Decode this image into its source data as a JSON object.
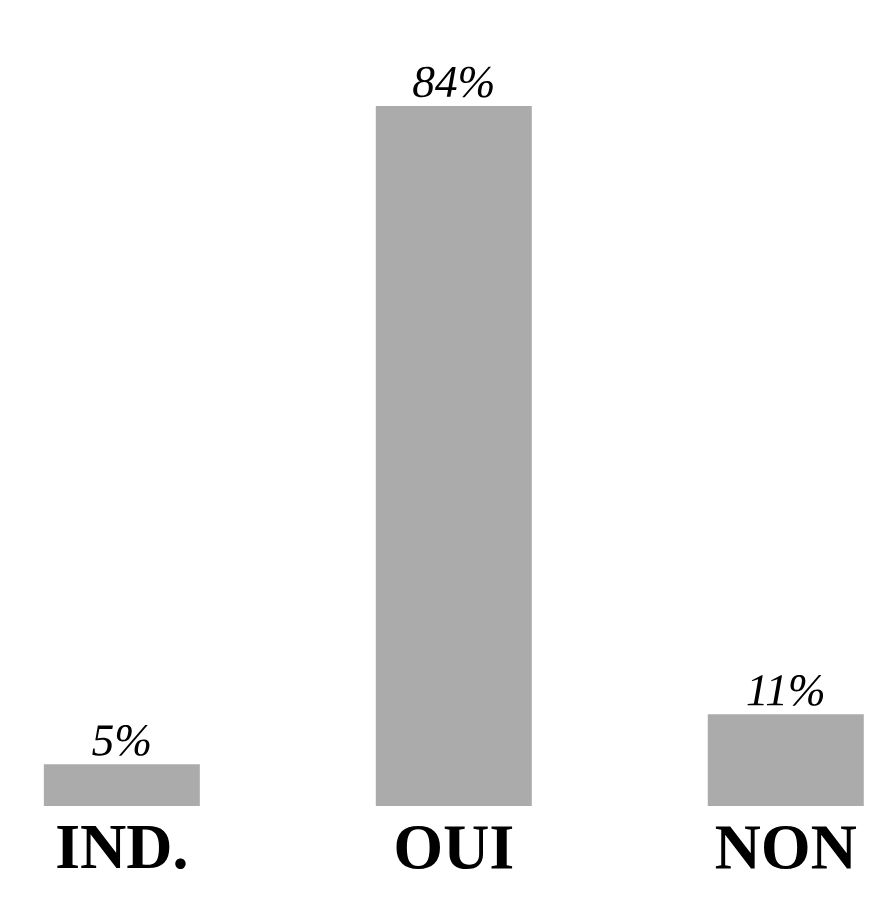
{
  "chart_data": {
    "type": "bar",
    "categories": [
      "IND.",
      "OUI",
      "NON"
    ],
    "values": [
      5,
      84,
      11
    ],
    "value_labels": [
      "5%",
      "84%",
      "11%"
    ],
    "color": "#ababab"
  }
}
